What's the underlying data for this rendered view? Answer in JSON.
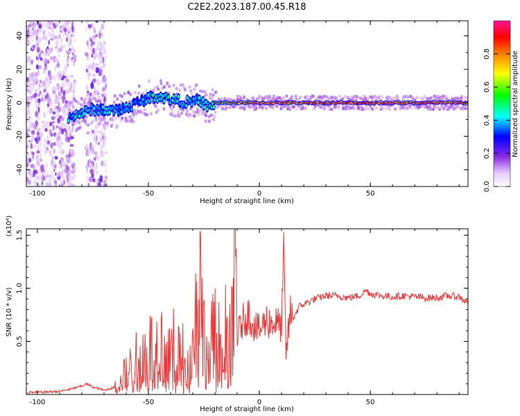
{
  "title": "C2E2.2023.187.00.45.R18",
  "spectrogram": {
    "xlabel": "Height of straight line (km)",
    "ylabel": "Frequency (Hz)",
    "xlim": [
      -105,
      94
    ],
    "ylim": [
      -50,
      49
    ],
    "xticks": [
      "-100",
      "-50",
      "0",
      "50"
    ],
    "yticks": [
      "40",
      "20",
      "0",
      "-20",
      "-40"
    ]
  },
  "colorbar": {
    "label": "Normalized spectral amplitude",
    "ticks": [
      "0.0",
      "0.2",
      "0.4",
      "0.6",
      "0.8"
    ],
    "colors": [
      "#ffffff",
      "#e6ccff",
      "#8a2be2",
      "#0000ff",
      "#00ffff",
      "#00ff00",
      "#ffff00",
      "#ff7f00",
      "#ff0000",
      "#ff1493"
    ]
  },
  "chart_data": [
    {
      "type": "heatmap",
      "title": "C2E2.2023.187.00.45.R18",
      "xlabel": "Height of straight line (km)",
      "ylabel": "Frequency (Hz)",
      "xlim": [
        -105,
        94
      ],
      "ylim": [
        -50,
        49
      ],
      "zlabel": "Normalized spectral amplitude",
      "zlim": [
        0,
        1
      ],
      "ridge": {
        "x": [
          -85,
          -80,
          -75,
          -70,
          -65,
          -60,
          -55,
          -50,
          -45,
          -40,
          -35,
          -30,
          -27,
          -25,
          -22,
          -20,
          -15,
          -10,
          -5,
          0,
          20,
          40,
          60,
          80,
          94
        ],
        "frequency": [
          -8,
          -6,
          -4,
          -4,
          -5,
          -3,
          0,
          3,
          4,
          2,
          1,
          0,
          2,
          -1,
          -3,
          0,
          0,
          0,
          0,
          0,
          0,
          0,
          0,
          0,
          0
        ],
        "amplitude": [
          0.45,
          0.5,
          0.45,
          0.45,
          0.5,
          0.45,
          0.4,
          0.5,
          0.55,
          0.55,
          0.5,
          0.45,
          0.5,
          0.5,
          0.55,
          0.55,
          0.65,
          0.75,
          0.8,
          0.85,
          0.9,
          0.9,
          0.9,
          0.9,
          0.9
        ]
      }
    },
    {
      "type": "line",
      "xlabel": "Height of straight line (km)",
      "ylabel": "SNR (10 * v/v)",
      "yscale_label": "(x10⁴)",
      "xlim": [
        -105,
        94
      ],
      "ylim": [
        0,
        15600
      ],
      "xticks": [
        "-100",
        "-50",
        "0",
        "50"
      ],
      "yticks": [
        "0.5",
        "1.0",
        "1.5"
      ],
      "color": "#ee3333",
      "series": [
        {
          "x": [
            -105,
            -100,
            -90,
            -85,
            -80,
            -78,
            -75,
            -70,
            -65,
            -62,
            -60,
            -57,
            -55,
            -52,
            -50,
            -47,
            -45,
            -42,
            -40,
            -37,
            -35,
            -32,
            -30,
            -28,
            -27,
            -26,
            -25,
            -23,
            -20,
            -18,
            -15,
            -13,
            -12,
            -11,
            -10,
            -8,
            -5,
            -2,
            0,
            3,
            5,
            8,
            10,
            11,
            12,
            14,
            15,
            18,
            20,
            25,
            30,
            35,
            40,
            45,
            48,
            50,
            55,
            60,
            65,
            70,
            75,
            80,
            85,
            90,
            94
          ],
          "y": [
            200,
            200,
            300,
            500,
            800,
            1000,
            700,
            400,
            700,
            1200,
            2400,
            2500,
            3300,
            3700,
            4500,
            4000,
            5200,
            3900,
            4200,
            4400,
            3800,
            4800,
            4900,
            8100,
            15600,
            7000,
            5500,
            4200,
            5600,
            4800,
            5800,
            5100,
            6000,
            15600,
            5500,
            6700,
            7600,
            6400,
            6000,
            7000,
            6800,
            6700,
            6400,
            12900,
            3800,
            7800,
            7100,
            8300,
            8500,
            9000,
            9300,
            9300,
            9100,
            9300,
            9800,
            9500,
            9300,
            9200,
            9300,
            9200,
            9100,
            9100,
            9300,
            9200,
            8600
          ]
        }
      ]
    }
  ]
}
